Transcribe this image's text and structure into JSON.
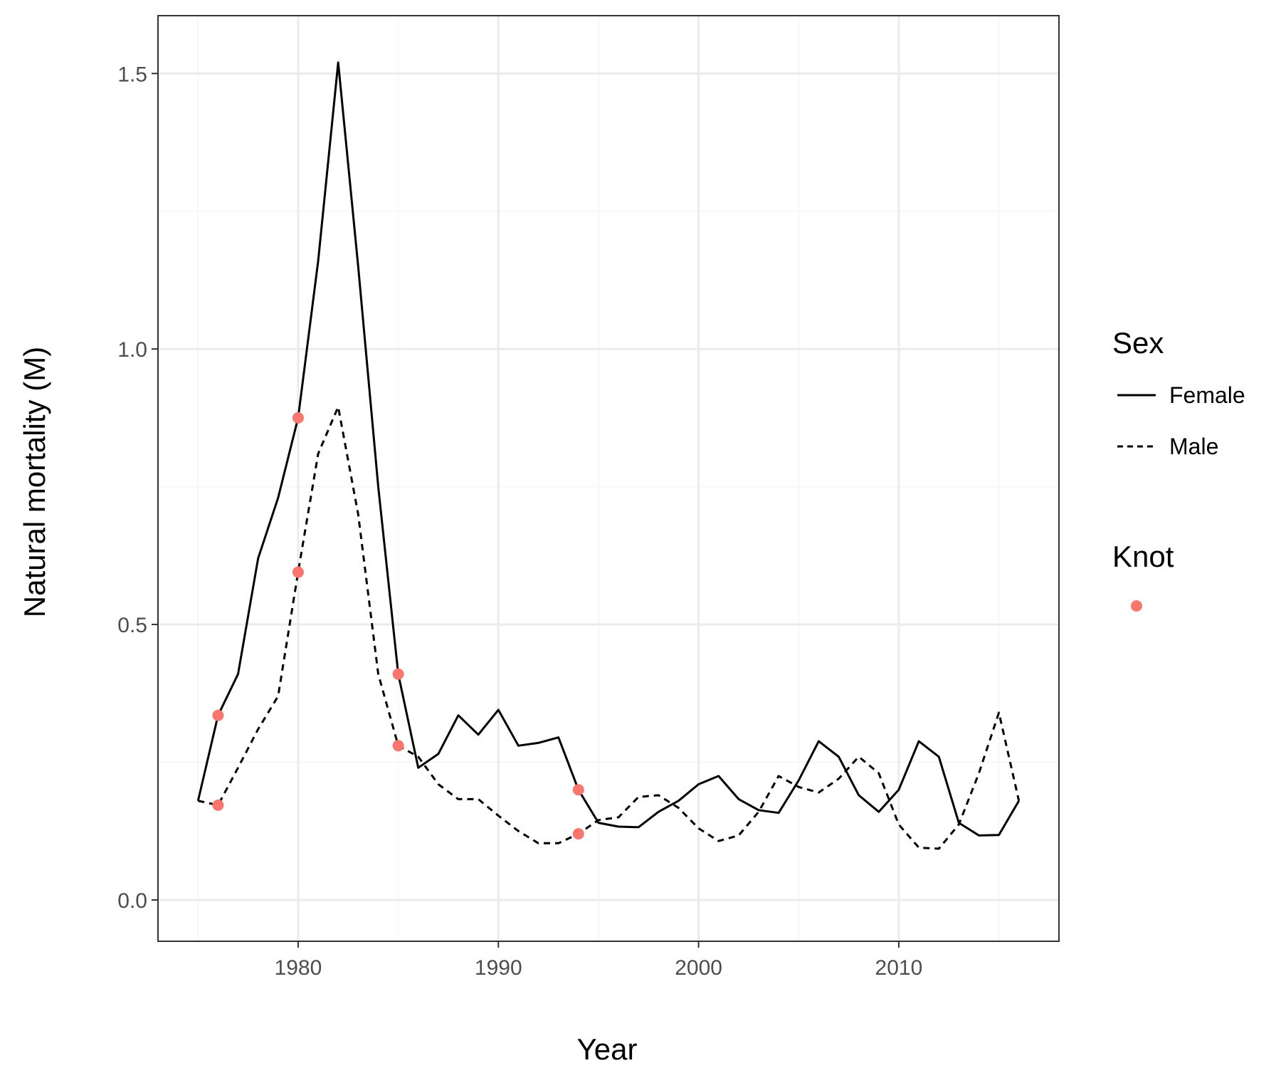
{
  "chart_data": {
    "type": "line",
    "title": "",
    "xlabel": "Year",
    "ylabel": "Natural mortality (M)",
    "xlim": [
      1973,
      2018
    ],
    "ylim": [
      -0.075,
      1.605
    ],
    "x_ticks": [
      1980,
      1990,
      2000,
      2010
    ],
    "x_tick_labels": [
      "1980",
      "1990",
      "2000",
      "2010"
    ],
    "y_ticks": [
      0.0,
      0.5,
      1.0,
      1.5
    ],
    "y_tick_labels": [
      "0.0",
      "0.5",
      "1.0",
      "1.5"
    ],
    "grid": true,
    "legend_position": "right",
    "series": [
      {
        "name": "Female",
        "linetype": "solid",
        "x": [
          1975,
          1976,
          1977,
          1978,
          1979,
          1980,
          1981,
          1982,
          1983,
          1984,
          1985,
          1986,
          1987,
          1988,
          1989,
          1990,
          1991,
          1992,
          1993,
          1994,
          1995,
          1996,
          1997,
          1998,
          1999,
          2000,
          2001,
          2002,
          2003,
          2004,
          2005,
          2006,
          2007,
          2008,
          2009,
          2010,
          2011,
          2012,
          2013,
          2014,
          2015,
          2016
        ],
        "values": [
          0.18,
          0.335,
          0.41,
          0.62,
          0.73,
          0.875,
          1.16,
          1.52,
          1.15,
          0.75,
          0.41,
          0.24,
          0.265,
          0.335,
          0.3,
          0.345,
          0.28,
          0.285,
          0.295,
          0.2,
          0.14,
          0.133,
          0.132,
          0.16,
          0.18,
          0.21,
          0.225,
          0.183,
          0.163,
          0.158,
          0.217,
          0.288,
          0.26,
          0.19,
          0.16,
          0.2,
          0.288,
          0.26,
          0.14,
          0.117,
          0.118,
          0.18
        ]
      },
      {
        "name": "Male",
        "linetype": "dashed",
        "x": [
          1975,
          1976,
          1977,
          1978,
          1979,
          1980,
          1981,
          1982,
          1983,
          1984,
          1985,
          1986,
          1987,
          1988,
          1989,
          1990,
          1991,
          1992,
          1993,
          1994,
          1995,
          1996,
          1997,
          1998,
          1999,
          2000,
          2001,
          2002,
          2003,
          2004,
          2005,
          2006,
          2007,
          2008,
          2009,
          2010,
          2011,
          2012,
          2013,
          2014,
          2015,
          2016
        ],
        "values": [
          0.18,
          0.172,
          0.24,
          0.31,
          0.37,
          0.595,
          0.81,
          0.895,
          0.7,
          0.41,
          0.28,
          0.26,
          0.21,
          0.183,
          0.183,
          0.153,
          0.125,
          0.103,
          0.103,
          0.12,
          0.145,
          0.15,
          0.187,
          0.19,
          0.167,
          0.13,
          0.107,
          0.117,
          0.16,
          0.225,
          0.205,
          0.195,
          0.22,
          0.26,
          0.23,
          0.137,
          0.095,
          0.093,
          0.137,
          0.23,
          0.34,
          0.18
        ]
      }
    ],
    "knots": {
      "name": "Knot",
      "color": "#f8766d",
      "points": [
        {
          "x": 1976,
          "y": 0.335
        },
        {
          "x": 1976,
          "y": 0.172
        },
        {
          "x": 1980,
          "y": 0.875
        },
        {
          "x": 1980,
          "y": 0.595
        },
        {
          "x": 1985,
          "y": 0.41
        },
        {
          "x": 1985,
          "y": 0.28
        },
        {
          "x": 1994,
          "y": 0.2
        },
        {
          "x": 1994,
          "y": 0.12
        }
      ]
    },
    "legend": {
      "sex_title": "Sex",
      "sex_items": [
        "Female",
        "Male"
      ],
      "knot_title": "Knot"
    },
    "colors": {
      "line": "#000000",
      "knot": "#f8766d",
      "grid_major": "#ebebeb",
      "grid_minor": "#f5f5f5",
      "panel_border": "#333333"
    }
  }
}
